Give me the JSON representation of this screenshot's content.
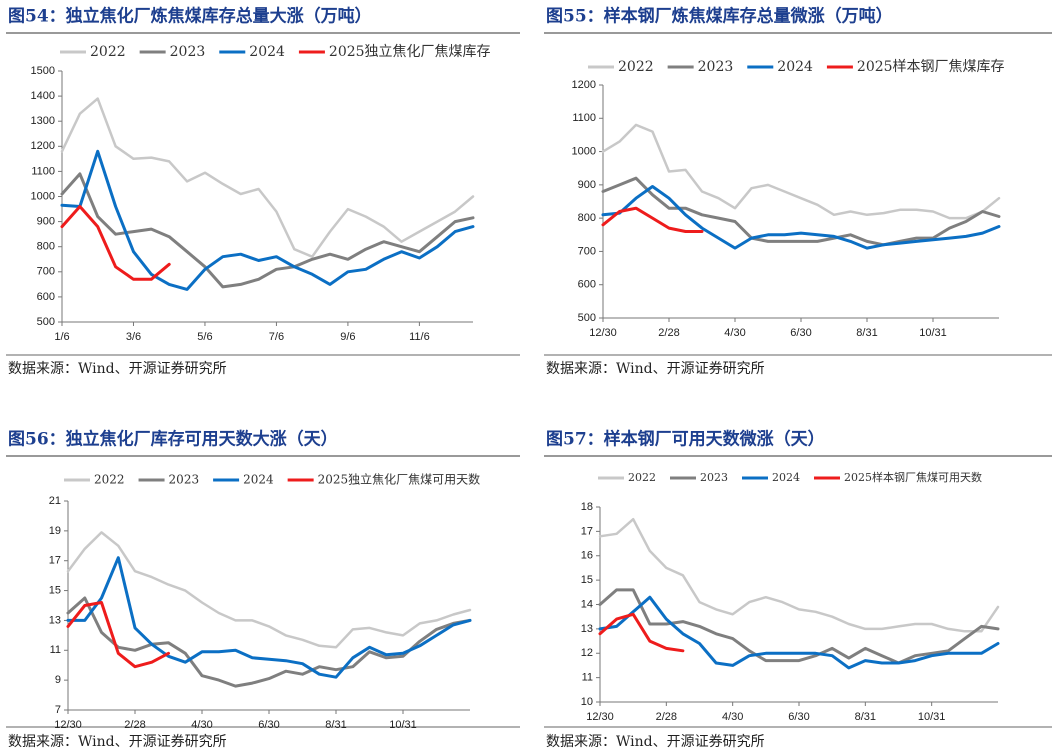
{
  "chart_data": [
    {
      "type": "line",
      "title": "图54：独立焦化厂炼焦煤库存总量大涨（万吨）",
      "source": "数据来源：Wind、开源证券研究所",
      "categories": [
        "1/6",
        null,
        null,
        null,
        "3/6",
        null,
        null,
        null,
        "5/6",
        null,
        null,
        null,
        "7/6",
        null,
        null,
        null,
        "9/6",
        null,
        null,
        null,
        "11/6",
        null,
        null,
        null
      ],
      "ylim": [
        500,
        1500
      ],
      "yticks": [
        500,
        600,
        700,
        800,
        900,
        1000,
        1100,
        1200,
        1300,
        1400,
        1500
      ],
      "grid": false,
      "series": [
        {
          "name": "2022",
          "color": "#c8c8c8",
          "values": [
            1180,
            1330,
            1390,
            1200,
            1150,
            1155,
            1140,
            1060,
            1095,
            1050,
            1010,
            1030,
            940,
            790,
            760,
            860,
            950,
            920,
            880,
            820,
            860,
            900,
            940,
            1000
          ]
        },
        {
          "name": "2023",
          "color": "#7f7f7f",
          "values": [
            1010,
            1090,
            920,
            850,
            860,
            870,
            840,
            780,
            720,
            640,
            650,
            670,
            710,
            720,
            750,
            770,
            750,
            790,
            820,
            800,
            780,
            840,
            900,
            915
          ]
        },
        {
          "name": "2024",
          "color": "#0b6fc4",
          "values": [
            965,
            960,
            1180,
            960,
            780,
            690,
            650,
            630,
            710,
            760,
            770,
            745,
            760,
            720,
            690,
            650,
            700,
            710,
            750,
            780,
            755,
            800,
            860,
            880
          ]
        },
        {
          "name": "2025独立焦化厂焦煤库存",
          "color": "#ee1c1c",
          "values": [
            880,
            960,
            880,
            720,
            670,
            670,
            730,
            null,
            null,
            null,
            null,
            null,
            null,
            null,
            null,
            null,
            null,
            null,
            null,
            null,
            null,
            null,
            null,
            null
          ]
        }
      ]
    },
    {
      "type": "line",
      "title": "图55：样本钢厂炼焦煤库存总量微涨（万吨）",
      "source": "数据来源：Wind、开源证券研究所",
      "categories": [
        "12/30",
        null,
        null,
        null,
        "2/28",
        null,
        null,
        null,
        "4/30",
        null,
        null,
        null,
        "6/30",
        null,
        null,
        null,
        "8/31",
        null,
        null,
        null,
        "10/31",
        null,
        null,
        null,
        null
      ],
      "ylim": [
        500,
        1200
      ],
      "yticks": [
        500,
        600,
        700,
        800,
        900,
        1000,
        1100,
        1200
      ],
      "grid": false,
      "series": [
        {
          "name": "2022",
          "color": "#c8c8c8",
          "values": [
            1000,
            1030,
            1080,
            1060,
            940,
            945,
            880,
            860,
            830,
            890,
            900,
            880,
            860,
            840,
            810,
            820,
            810,
            815,
            825,
            825,
            820,
            800,
            800,
            820,
            860
          ]
        },
        {
          "name": "2023",
          "color": "#7f7f7f",
          "values": [
            880,
            900,
            920,
            870,
            830,
            830,
            810,
            800,
            790,
            740,
            730,
            730,
            730,
            730,
            740,
            750,
            730,
            720,
            730,
            740,
            740,
            770,
            790,
            820,
            805
          ]
        },
        {
          "name": "2024",
          "color": "#0b6fc4",
          "values": [
            810,
            815,
            860,
            895,
            860,
            810,
            770,
            740,
            710,
            740,
            750,
            750,
            755,
            750,
            745,
            730,
            710,
            720,
            725,
            730,
            735,
            740,
            745,
            755,
            775
          ]
        },
        {
          "name": "2025样本钢厂焦煤库存",
          "color": "#ee1c1c",
          "values": [
            780,
            820,
            830,
            800,
            770,
            760,
            760,
            null,
            null,
            null,
            null,
            null,
            null,
            null,
            null,
            null,
            null,
            null,
            null,
            null,
            null,
            null,
            null,
            null,
            null
          ]
        }
      ]
    },
    {
      "type": "line",
      "title": "图56：独立焦化厂库存可用天数大涨（天）",
      "source": "数据来源：Wind、开源证券研究所",
      "categories": [
        "12/30",
        null,
        null,
        null,
        "2/28",
        null,
        null,
        null,
        "4/30",
        null,
        null,
        null,
        "6/30",
        null,
        null,
        null,
        "8/31",
        null,
        null,
        null,
        "10/31",
        null,
        null,
        null,
        null
      ],
      "ylim": [
        7,
        21
      ],
      "yticks": [
        7,
        9,
        11,
        13,
        15,
        17,
        19,
        21
      ],
      "grid": false,
      "series": [
        {
          "name": "2022",
          "color": "#c8c8c8",
          "values": [
            16.3,
            17.8,
            18.9,
            18,
            16.3,
            15.9,
            15.4,
            15,
            14.2,
            13.5,
            13,
            13,
            12.6,
            12,
            11.7,
            11.3,
            11.2,
            12.4,
            12.5,
            12.2,
            12,
            12.8,
            13,
            13.4,
            13.7
          ]
        },
        {
          "name": "2023",
          "color": "#7f7f7f",
          "values": [
            13.5,
            14.5,
            12.2,
            11.2,
            11,
            11.4,
            11.5,
            10.8,
            9.3,
            9,
            8.6,
            8.8,
            9.1,
            9.6,
            9.4,
            9.9,
            9.7,
            9.9,
            10.9,
            10.5,
            10.6,
            11.6,
            12.4,
            12.8,
            13
          ]
        },
        {
          "name": "2024",
          "color": "#0b6fc4",
          "values": [
            13,
            13,
            14.5,
            17.2,
            12.5,
            11.4,
            10.6,
            10.2,
            10.9,
            10.9,
            11,
            10.5,
            10.4,
            10.3,
            10.1,
            9.4,
            9.2,
            10.5,
            11.2,
            10.7,
            10.8,
            11.3,
            12,
            12.7,
            13
          ]
        },
        {
          "name": "2025独立焦化厂焦煤可用天数",
          "color": "#ee1c1c",
          "values": [
            12.6,
            14,
            14.2,
            10.8,
            9.9,
            10.2,
            10.8,
            null,
            null,
            null,
            null,
            null,
            null,
            null,
            null,
            null,
            null,
            null,
            null,
            null,
            null,
            null,
            null,
            null,
            null
          ]
        }
      ]
    },
    {
      "type": "line",
      "title": "图57：样本钢厂可用天数微涨（天）",
      "source": "数据来源：Wind、开源证券研究所",
      "categories": [
        "12/30",
        null,
        null,
        null,
        "2/28",
        null,
        null,
        null,
        "4/30",
        null,
        null,
        null,
        "6/30",
        null,
        null,
        null,
        "8/31",
        null,
        null,
        null,
        "10/31",
        null,
        null,
        null,
        null
      ],
      "ylim": [
        10,
        18
      ],
      "yticks": [
        10,
        11,
        12,
        13,
        14,
        15,
        16,
        17,
        18
      ],
      "grid": false,
      "series": [
        {
          "name": "2022",
          "color": "#c8c8c8",
          "values": [
            16.8,
            16.9,
            17.5,
            16.2,
            15.5,
            15.2,
            14.1,
            13.8,
            13.6,
            14.1,
            14.3,
            14.1,
            13.8,
            13.7,
            13.5,
            13.2,
            13,
            13,
            13.1,
            13.2,
            13.2,
            13,
            12.9,
            12.9,
            13.9
          ]
        },
        {
          "name": "2023",
          "color": "#7f7f7f",
          "values": [
            14,
            14.6,
            14.6,
            13.2,
            13.2,
            13.3,
            13.1,
            12.8,
            12.6,
            12.1,
            11.7,
            11.7,
            11.7,
            11.9,
            12.2,
            11.8,
            12.2,
            11.9,
            11.6,
            11.9,
            12,
            12.1,
            12.6,
            13.1,
            13
          ]
        },
        {
          "name": "2024",
          "color": "#0b6fc4",
          "values": [
            13,
            13.1,
            13.7,
            14.3,
            13.4,
            12.8,
            12.4,
            11.6,
            11.5,
            11.9,
            12,
            12,
            12,
            12,
            11.9,
            11.4,
            11.7,
            11.6,
            11.6,
            11.7,
            11.9,
            12,
            12,
            12,
            12.4
          ]
        },
        {
          "name": "2025样本钢厂焦煤可用天数",
          "color": "#ee1c1c",
          "values": [
            12.8,
            13.4,
            13.6,
            12.5,
            12.2,
            12.1,
            null,
            null,
            null,
            null,
            null,
            null,
            null,
            null,
            null,
            null,
            null,
            null,
            null,
            null,
            null,
            null,
            null,
            null,
            null
          ]
        }
      ]
    }
  ]
}
